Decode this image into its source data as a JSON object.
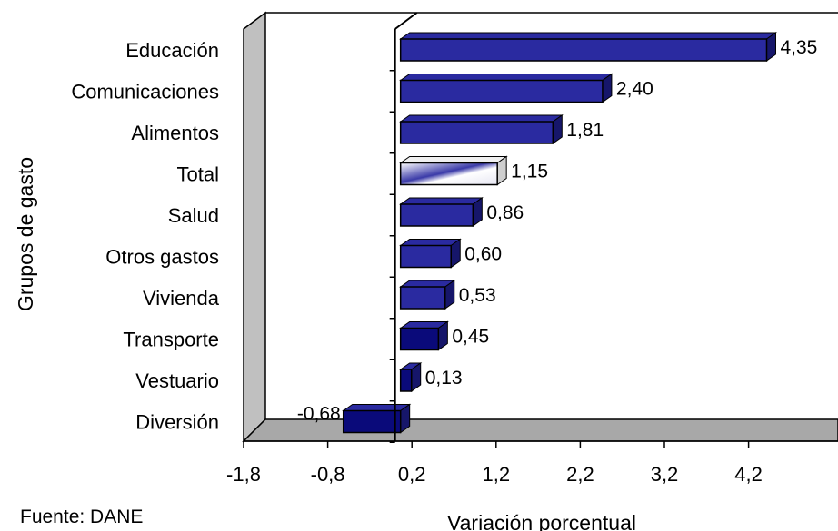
{
  "chart_data": {
    "type": "bar",
    "orientation": "horizontal",
    "categories": [
      "Educación",
      "Comunicaciones",
      "Alimentos",
      "Total",
      "Salud",
      "Otros gastos",
      "Vivienda",
      "Transporte",
      "Vestuario",
      "Diversión"
    ],
    "values": [
      4.35,
      2.4,
      1.81,
      1.15,
      0.86,
      0.6,
      0.53,
      0.45,
      0.13,
      -0.68
    ],
    "value_labels": [
      "4,35",
      "2,40",
      "1,81",
      "1,15",
      "0,86",
      "0,60",
      "0,53",
      "0,45",
      "0,13",
      "-0,68"
    ],
    "highlight_category": "Total",
    "xticks": [
      -1.8,
      -0.8,
      0.2,
      1.2,
      2.2,
      3.2,
      4.2
    ],
    "xtick_labels": [
      "-1,8",
      "-0,8",
      "0,2",
      "1,2",
      "2,2",
      "3,2",
      "4,2"
    ],
    "xlim": [
      -1.8,
      5.0
    ],
    "xlabel": "Variación porcentual",
    "ylabel": "Grupos de gasto",
    "grid": false,
    "colors": {
      "bar": "#2a2aa0",
      "bar_dark": "#0a0a7a",
      "bar_side": "#16166a",
      "highlight": "#ffffff",
      "wall": "#c0c0c0",
      "floor": "#a8a8a8"
    }
  },
  "footer": {
    "source": "Fuente: DANE"
  }
}
